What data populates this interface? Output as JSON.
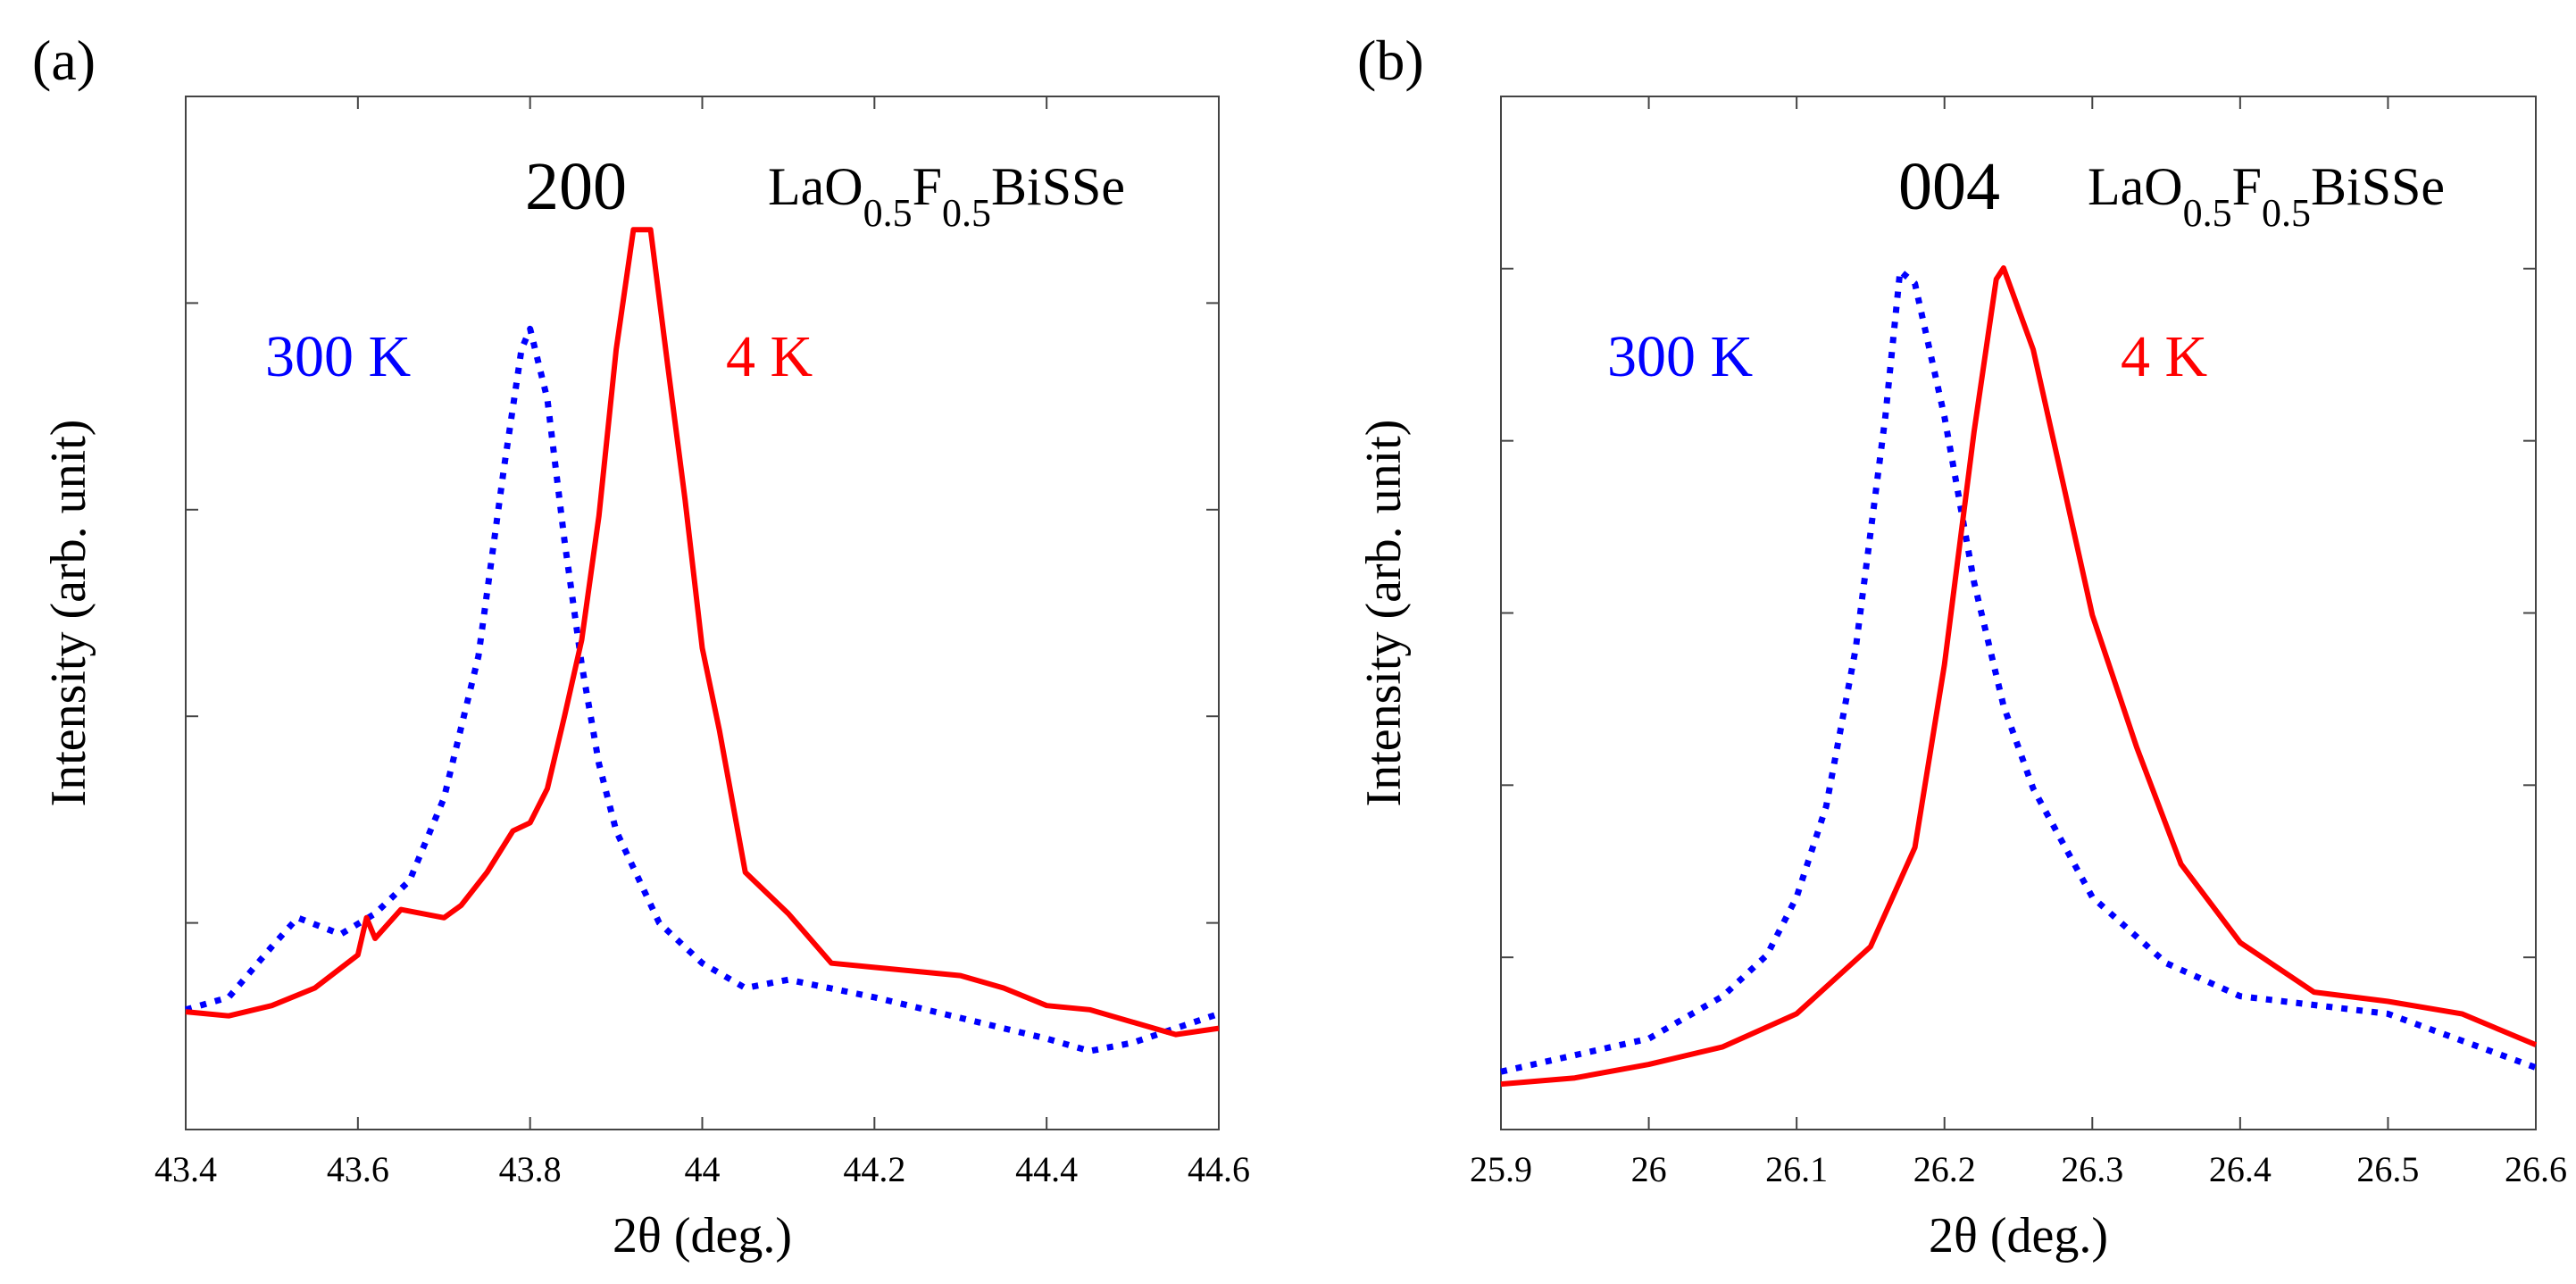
{
  "chart_data": [
    {
      "panel_label": "(a)",
      "type": "line",
      "reflection": "200",
      "compound": {
        "base": "LaO",
        "sub1": "0.5",
        "mid": "F",
        "sub2": "0.5",
        "tail": "BiSSe"
      },
      "xlabel": "2θ (deg.)",
      "ylabel": "Intensity (arb. unit)",
      "xlim": [
        43.4,
        44.6
      ],
      "ylim": [
        0,
        1
      ],
      "xticks": [
        "43.4",
        "43.6",
        "43.8",
        "44",
        "44.2",
        "44.4",
        "44.6"
      ],
      "xtick_values": [
        43.4,
        43.6,
        43.8,
        44.0,
        44.2,
        44.4,
        44.6
      ],
      "yticks_count": 5,
      "series": [
        {
          "name": "300 K",
          "color": "#0000ff",
          "style": "dotted",
          "x": [
            43.4,
            43.45,
            43.5,
            43.53,
            43.58,
            43.62,
            43.66,
            43.7,
            43.74,
            43.77,
            43.79,
            43.8,
            43.82,
            43.84,
            43.86,
            43.88,
            43.9,
            43.95,
            44.0,
            44.05,
            44.1,
            44.2,
            44.3,
            44.4,
            44.45,
            44.5,
            44.6
          ],
          "y": [
            0.116,
            0.128,
            0.177,
            0.205,
            0.189,
            0.209,
            0.241,
            0.321,
            0.458,
            0.642,
            0.755,
            0.775,
            0.707,
            0.57,
            0.45,
            0.354,
            0.289,
            0.2,
            0.161,
            0.137,
            0.145,
            0.128,
            0.108,
            0.088,
            0.076,
            0.084,
            0.112
          ]
        },
        {
          "name": "4 K",
          "color": "#ff0000",
          "style": "solid",
          "x": [
            43.4,
            43.45,
            43.5,
            43.55,
            43.6,
            43.61,
            43.62,
            43.65,
            43.7,
            43.72,
            43.75,
            43.78,
            43.8,
            43.82,
            43.84,
            43.86,
            43.88,
            43.9,
            43.92,
            43.94,
            43.96,
            43.98,
            44.0,
            44.02,
            44.05,
            44.1,
            44.15,
            44.2,
            44.25,
            44.3,
            44.35,
            44.4,
            44.45,
            44.5,
            44.55,
            44.6
          ],
          "y": [
            0.114,
            0.11,
            0.12,
            0.137,
            0.169,
            0.205,
            0.185,
            0.213,
            0.205,
            0.217,
            0.249,
            0.289,
            0.297,
            0.33,
            0.4,
            0.474,
            0.594,
            0.755,
            0.871,
            0.871,
            0.739,
            0.61,
            0.466,
            0.386,
            0.249,
            0.209,
            0.161,
            0.157,
            0.153,
            0.149,
            0.137,
            0.12,
            0.116,
            0.104,
            0.092,
            0.098
          ]
        }
      ]
    },
    {
      "panel_label": "(b)",
      "type": "line",
      "reflection": "004",
      "compound": {
        "base": "LaO",
        "sub1": "0.5",
        "mid": "F",
        "sub2": "0.5",
        "tail": "BiSSe"
      },
      "xlabel": "2θ (deg.)",
      "ylabel": "Intensity (arb. unit)",
      "xlim": [
        25.9,
        26.6
      ],
      "ylim": [
        0,
        1
      ],
      "xticks": [
        "25.9",
        "26",
        "26.1",
        "26.2",
        "26.3",
        "26.4",
        "26.5",
        "26.6"
      ],
      "xtick_values": [
        25.9,
        26.0,
        26.1,
        26.2,
        26.3,
        26.4,
        26.5,
        26.6
      ],
      "yticks_count": 6,
      "series": [
        {
          "name": "300 K",
          "color": "#0000ff",
          "style": "dotted",
          "x": [
            25.9,
            26.0,
            26.05,
            26.08,
            26.1,
            26.12,
            26.14,
            26.16,
            26.17,
            26.18,
            26.2,
            26.22,
            26.24,
            26.26,
            26.3,
            26.35,
            26.4,
            26.5,
            26.6
          ],
          "y": [
            0.056,
            0.088,
            0.129,
            0.169,
            0.225,
            0.313,
            0.466,
            0.69,
            0.831,
            0.819,
            0.69,
            0.53,
            0.41,
            0.33,
            0.225,
            0.161,
            0.129,
            0.112,
            0.06
          ]
        },
        {
          "name": "4 K",
          "color": "#ff0000",
          "style": "solid",
          "x": [
            25.9,
            25.95,
            26.0,
            26.05,
            26.1,
            26.15,
            26.18,
            26.2,
            26.22,
            26.235,
            26.24,
            26.26,
            26.28,
            26.3,
            26.33,
            26.36,
            26.4,
            26.45,
            26.5,
            26.55,
            26.6
          ],
          "y": [
            0.044,
            0.05,
            0.063,
            0.08,
            0.112,
            0.177,
            0.273,
            0.45,
            0.675,
            0.823,
            0.834,
            0.755,
            0.627,
            0.498,
            0.37,
            0.257,
            0.181,
            0.133,
            0.124,
            0.112,
            0.082
          ]
        }
      ]
    }
  ]
}
